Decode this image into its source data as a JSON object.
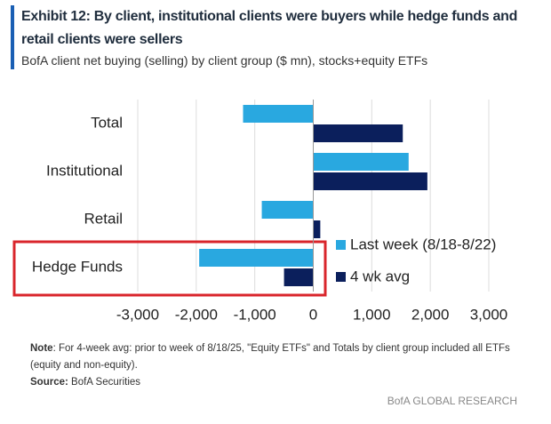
{
  "chart_data": {
    "type": "hbar",
    "title": "Exhibit 12: By client, institutional clients were buyers while hedge funds and retail clients were sellers",
    "subtitle": "BofA client net buying (selling) by client group ($ mn), stocks+equity ETFs",
    "categories": [
      "Total",
      "Institutional",
      "Retail",
      "Hedge Funds"
    ],
    "series": [
      {
        "name": "Last week (8/18-8/22)",
        "color": "#29a8e0",
        "values": [
          -1200,
          1630,
          -880,
          -1950
        ]
      },
      {
        "name": "4 wk avg",
        "color": "#0b1f5c",
        "values": [
          1530,
          1950,
          120,
          -500
        ]
      }
    ],
    "xlim": [
      -3000,
      3000
    ],
    "xticks": [
      {
        "value": -3000,
        "label": "-3,000"
      },
      {
        "value": -2000,
        "label": "-2,000"
      },
      {
        "value": -1000,
        "label": "-1,000"
      },
      0,
      {
        "value": 1000,
        "label": "1,000"
      },
      {
        "value": 2000,
        "label": "2,000"
      },
      {
        "value": 3000,
        "label": "3,000"
      }
    ],
    "grid": true,
    "legend": "lower right",
    "note_label": "Note",
    "note": ": For 4-week avg: prior to week of 8/18/25, \"Equity ETFs\" and Totals by client group included all ETFs (equity and non-equity).",
    "source_label": "Source:",
    "source": "BofA Securities",
    "branding": "BofA GLOBAL RESEARCH"
  }
}
